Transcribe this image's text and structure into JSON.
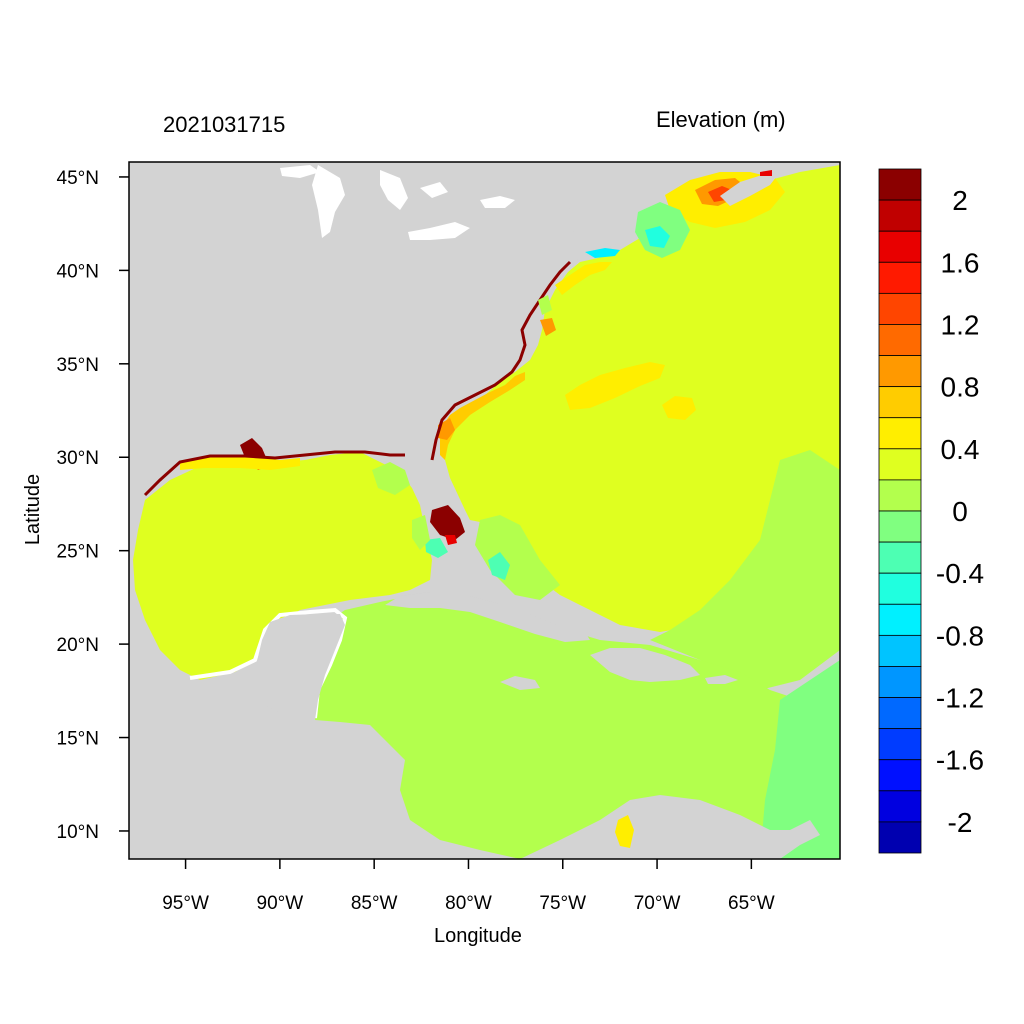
{
  "map": {
    "date_label": "2021031715",
    "title": "Elevation (m)",
    "xlabel": "Longitude",
    "ylabel": "Latitude",
    "extent": {
      "lon": [
        -98,
        -60.3
      ],
      "lat": [
        8.5,
        45.8
      ]
    },
    "lon_ticks": [
      {
        "value": -95,
        "label": "95°W"
      },
      {
        "value": -90,
        "label": "90°W"
      },
      {
        "value": -85,
        "label": "85°W"
      },
      {
        "value": -80,
        "label": "80°W"
      },
      {
        "value": -75,
        "label": "75°W"
      },
      {
        "value": -70,
        "label": "70°W"
      },
      {
        "value": -65,
        "label": "65°W"
      }
    ],
    "lat_ticks": [
      {
        "value": 45,
        "label": "45°N"
      },
      {
        "value": 40,
        "label": "40°N"
      },
      {
        "value": 35,
        "label": "35°N"
      },
      {
        "value": 30,
        "label": "30°N"
      },
      {
        "value": 25,
        "label": "25°N"
      },
      {
        "value": 20,
        "label": "20°N"
      },
      {
        "value": 15,
        "label": "15°N"
      },
      {
        "value": 10,
        "label": "10°N"
      }
    ],
    "land_color": "#d3d3d3",
    "background_color": "#ffffff"
  },
  "colorbar": {
    "colors_top_to_bottom": [
      "#8b0000",
      "#c00000",
      "#e80000",
      "#ff1a00",
      "#ff4500",
      "#ff6a00",
      "#ff9900",
      "#ffcc00",
      "#ffee00",
      "#dfff20",
      "#b3ff4d",
      "#80ff80",
      "#4dffb3",
      "#20ffdf",
      "#00f0ff",
      "#00c4ff",
      "#0096ff",
      "#0069ff",
      "#003cff",
      "#0010ff",
      "#0000e0",
      "#0000b0"
    ],
    "labels": [
      "2",
      "1.6",
      "1.2",
      "0.8",
      "0.4",
      "0",
      "-0.4",
      "-0.8",
      "-1.2",
      "-1.6",
      "-2"
    ]
  }
}
